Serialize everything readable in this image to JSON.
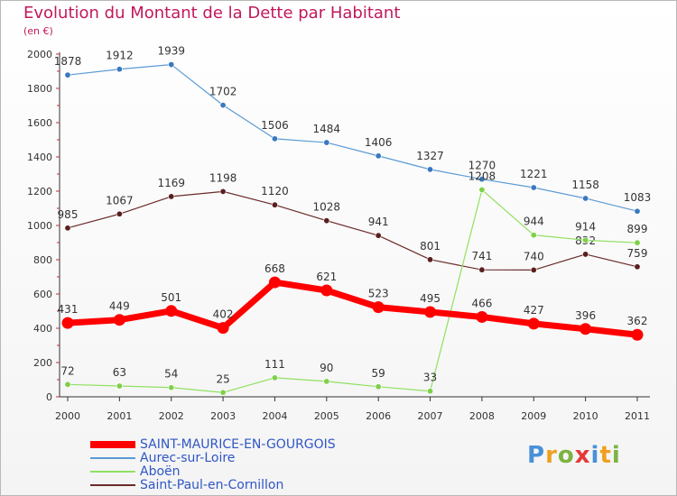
{
  "title": "Evolution du Montant de la Dette par Habitant",
  "subtitle": "(en €)",
  "logo": {
    "parts": [
      "Pro",
      "x",
      "iti"
    ],
    "colors": [
      "#4a90d9",
      "#f0a020",
      "#7cb342",
      "#e53935"
    ]
  },
  "chart_data": {
    "type": "line",
    "x": [
      "2000",
      "2001",
      "2002",
      "2003",
      "2004",
      "2005",
      "2006",
      "2007",
      "2008",
      "2009",
      "2010",
      "2011"
    ],
    "ylim": [
      0,
      2000
    ],
    "yticks": [
      0,
      200,
      400,
      600,
      800,
      1000,
      1200,
      1400,
      1600,
      1800,
      2000
    ],
    "grid": false,
    "legend_position": "bottom",
    "series": [
      {
        "name": "SAINT-MAURICE-EN-GOURGOIS",
        "color": "#ff0000",
        "marker": "#ff0000",
        "width": 7,
        "values": [
          431,
          449,
          501,
          402,
          668,
          621,
          523,
          495,
          466,
          427,
          396,
          362
        ]
      },
      {
        "name": "Aurec-sur-Loire",
        "color": "#5b9bd5",
        "marker": "#3a78c0",
        "width": 1.2,
        "values": [
          1878,
          1912,
          1939,
          1702,
          1506,
          1484,
          1406,
          1327,
          1270,
          1221,
          1158,
          1083
        ]
      },
      {
        "name": "Aboën",
        "color": "#90e060",
        "marker": "#7ed04a",
        "width": 1.2,
        "values": [
          72,
          63,
          54,
          25,
          111,
          90,
          59,
          33,
          1208,
          944,
          914,
          899
        ]
      },
      {
        "name": "Saint-Paul-en-Cornillon",
        "color": "#6b2a2a",
        "marker": "#5a1f1f",
        "width": 1.2,
        "values": [
          985,
          1067,
          1169,
          1198,
          1120,
          1028,
          941,
          801,
          741,
          740,
          832,
          759
        ]
      }
    ]
  }
}
